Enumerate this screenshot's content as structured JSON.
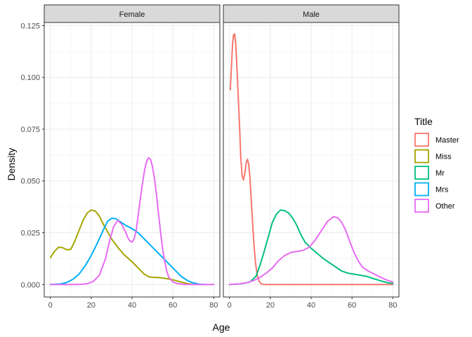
{
  "chart_data": {
    "type": "line",
    "subtype": "density",
    "xlabel": "Age",
    "ylabel": "Density",
    "xlim": [
      -3,
      83
    ],
    "ylim": [
      -0.006,
      0.1265
    ],
    "x_ticks": [
      "0",
      "20",
      "40",
      "60",
      "80"
    ],
    "x_tick_values": [
      0,
      20,
      40,
      60,
      80
    ],
    "y_ticks": [
      "0.000",
      "0.025",
      "0.050",
      "0.075",
      "0.100",
      "0.125"
    ],
    "y_tick_values": [
      0,
      0.025,
      0.05,
      0.075,
      0.1,
      0.125
    ],
    "grid": true,
    "legend": {
      "title": "Title",
      "position": "right",
      "entries": [
        {
          "label": "Master",
          "color": "#F8766D"
        },
        {
          "label": "Miss",
          "color": "#A3A500"
        },
        {
          "label": "Mr",
          "color": "#00BF7D"
        },
        {
          "label": "Mrs",
          "color": "#00B0F6"
        },
        {
          "label": "Other",
          "color": "#E76BF3"
        }
      ]
    },
    "panels": [
      {
        "strip": "Female",
        "series": [
          {
            "legend_index": 1,
            "points": [
              [
                0,
                0.013
              ],
              [
                2,
                0.016
              ],
              [
                4,
                0.018
              ],
              [
                6,
                0.0178
              ],
              [
                8,
                0.0168
              ],
              [
                10,
                0.017
              ],
              [
                12,
                0.021
              ],
              [
                14,
                0.026
              ],
              [
                16,
                0.031
              ],
              [
                18,
                0.0345
              ],
              [
                20,
                0.036
              ],
              [
                22,
                0.0355
              ],
              [
                24,
                0.033
              ],
              [
                26,
                0.029
              ],
              [
                28,
                0.0255
              ],
              [
                30,
                0.022
              ],
              [
                33,
                0.018
              ],
              [
                36,
                0.0145
              ],
              [
                40,
                0.011
              ],
              [
                43,
                0.008
              ],
              [
                46,
                0.005
              ],
              [
                48,
                0.0038
              ],
              [
                50,
                0.0035
              ],
              [
                53,
                0.0034
              ],
              [
                56,
                0.003
              ],
              [
                60,
                0.0023
              ],
              [
                64,
                0.0012
              ],
              [
                67,
                0.0005
              ],
              [
                70,
                0.0001
              ],
              [
                73,
                0.0
              ]
            ]
          },
          {
            "legend_index": 3,
            "points": [
              [
                0,
                0.0
              ],
              [
                5,
                0.0003
              ],
              [
                8,
                0.001
              ],
              [
                11,
                0.0025
              ],
              [
                14,
                0.005
              ],
              [
                17,
                0.009
              ],
              [
                20,
                0.014
              ],
              [
                23,
                0.02
              ],
              [
                26,
                0.0265
              ],
              [
                28,
                0.0305
              ],
              [
                30,
                0.032
              ],
              [
                32,
                0.0318
              ],
              [
                34,
                0.0305
              ],
              [
                37,
                0.0285
              ],
              [
                40,
                0.027
              ],
              [
                43,
                0.025
              ],
              [
                46,
                0.022
              ],
              [
                50,
                0.018
              ],
              [
                54,
                0.014
              ],
              [
                58,
                0.01
              ],
              [
                61,
                0.007
              ],
              [
                64,
                0.004
              ],
              [
                67,
                0.002
              ],
              [
                70,
                0.0008
              ],
              [
                73,
                0.0002
              ],
              [
                76,
                0.0
              ]
            ]
          },
          {
            "legend_index": 4,
            "points": [
              [
                0,
                0.0
              ],
              [
                10,
                0.0
              ],
              [
                15,
                0.0001
              ],
              [
                18,
                0.0004
              ],
              [
                21,
                0.0015
              ],
              [
                24,
                0.0045
              ],
              [
                27,
                0.0125
              ],
              [
                29,
                0.021
              ],
              [
                31,
                0.028
              ],
              [
                33,
                0.031
              ],
              [
                35,
                0.029
              ],
              [
                37,
                0.025
              ],
              [
                38,
                0.0225
              ],
              [
                39,
                0.021
              ],
              [
                40,
                0.0205
              ],
              [
                41,
                0.022
              ],
              [
                42,
                0.026
              ],
              [
                43,
                0.0335
              ],
              [
                44,
                0.041
              ],
              [
                45,
                0.048
              ],
              [
                46,
                0.0545
              ],
              [
                47,
                0.059
              ],
              [
                48,
                0.0612
              ],
              [
                49,
                0.0605
              ],
              [
                50,
                0.057
              ],
              [
                51,
                0.051
              ],
              [
                52,
                0.043
              ],
              [
                53,
                0.034
              ],
              [
                54,
                0.025
              ],
              [
                55,
                0.017
              ],
              [
                56,
                0.011
              ],
              [
                57,
                0.0065
              ],
              [
                58,
                0.0035
              ],
              [
                60,
                0.0013
              ],
              [
                62,
                0.0005
              ],
              [
                65,
                0.0001
              ],
              [
                70,
                0.0
              ],
              [
                80,
                0.0
              ]
            ]
          }
        ]
      },
      {
        "strip": "Male",
        "series": [
          {
            "legend_index": 0,
            "points": [
              [
                0.4,
                0.094
              ],
              [
                1.0,
                0.106
              ],
              [
                1.5,
                0.116
              ],
              [
                2.0,
                0.1205
              ],
              [
                2.5,
                0.121
              ],
              [
                3.0,
                0.117
              ],
              [
                3.5,
                0.108
              ],
              [
                4.0,
                0.097
              ],
              [
                5.0,
                0.075
              ],
              [
                5.5,
                0.062
              ],
              [
                6.2,
                0.0525
              ],
              [
                6.8,
                0.0505
              ],
              [
                7.5,
                0.0535
              ],
              [
                8.2,
                0.059
              ],
              [
                8.8,
                0.0605
              ],
              [
                9.4,
                0.058
              ],
              [
                10,
                0.052
              ],
              [
                10.6,
                0.042
              ],
              [
                11.3,
                0.03
              ],
              [
                12,
                0.019
              ],
              [
                12.8,
                0.01
              ],
              [
                13.6,
                0.0045
              ],
              [
                14.5,
                0.0015
              ],
              [
                15.5,
                0.0004
              ],
              [
                17,
                0.0
              ],
              [
                80,
                0.0
              ]
            ]
          },
          {
            "legend_index": 2,
            "points": [
              [
                0,
                0.0
              ],
              [
                5,
                0.0003
              ],
              [
                10,
                0.0012
              ],
              [
                13,
                0.004
              ],
              [
                15,
                0.0095
              ],
              [
                17,
                0.016
              ],
              [
                19,
                0.023
              ],
              [
                21,
                0.03
              ],
              [
                23,
                0.034
              ],
              [
                25,
                0.036
              ],
              [
                27,
                0.0357
              ],
              [
                29,
                0.0345
              ],
              [
                31,
                0.032
              ],
              [
                33,
                0.0285
              ],
              [
                35,
                0.024
              ],
              [
                37,
                0.0205
              ],
              [
                40,
                0.0175
              ],
              [
                43,
                0.015
              ],
              [
                46,
                0.0125
              ],
              [
                49,
                0.0105
              ],
              [
                52,
                0.0085
              ],
              [
                55,
                0.0065
              ],
              [
                58,
                0.0055
              ],
              [
                61,
                0.005
              ],
              [
                64,
                0.0045
              ],
              [
                67,
                0.004
              ],
              [
                70,
                0.003
              ],
              [
                74,
                0.0018
              ],
              [
                77,
                0.001
              ],
              [
                80,
                0.0005
              ]
            ]
          },
          {
            "legend_index": 4,
            "points": [
              [
                0,
                0.0
              ],
              [
                5,
                0.0003
              ],
              [
                9,
                0.001
              ],
              [
                12,
                0.002
              ],
              [
                15,
                0.0035
              ],
              [
                18,
                0.0055
              ],
              [
                21,
                0.008
              ],
              [
                24,
                0.0115
              ],
              [
                27,
                0.014
              ],
              [
                30,
                0.0155
              ],
              [
                33,
                0.016
              ],
              [
                36,
                0.0165
              ],
              [
                39,
                0.018
              ],
              [
                42,
                0.0215
              ],
              [
                45,
                0.026
              ],
              [
                48,
                0.0305
              ],
              [
                51,
                0.0328
              ],
              [
                53,
                0.0322
              ],
              [
                55,
                0.03
              ],
              [
                57,
                0.026
              ],
              [
                59,
                0.0205
              ],
              [
                61,
                0.0155
              ],
              [
                63,
                0.0115
              ],
              [
                65,
                0.0085
              ],
              [
                68,
                0.0065
              ],
              [
                71,
                0.005
              ],
              [
                74,
                0.0035
              ],
              [
                77,
                0.0022
              ],
              [
                80,
                0.0012
              ]
            ]
          }
        ]
      }
    ]
  }
}
